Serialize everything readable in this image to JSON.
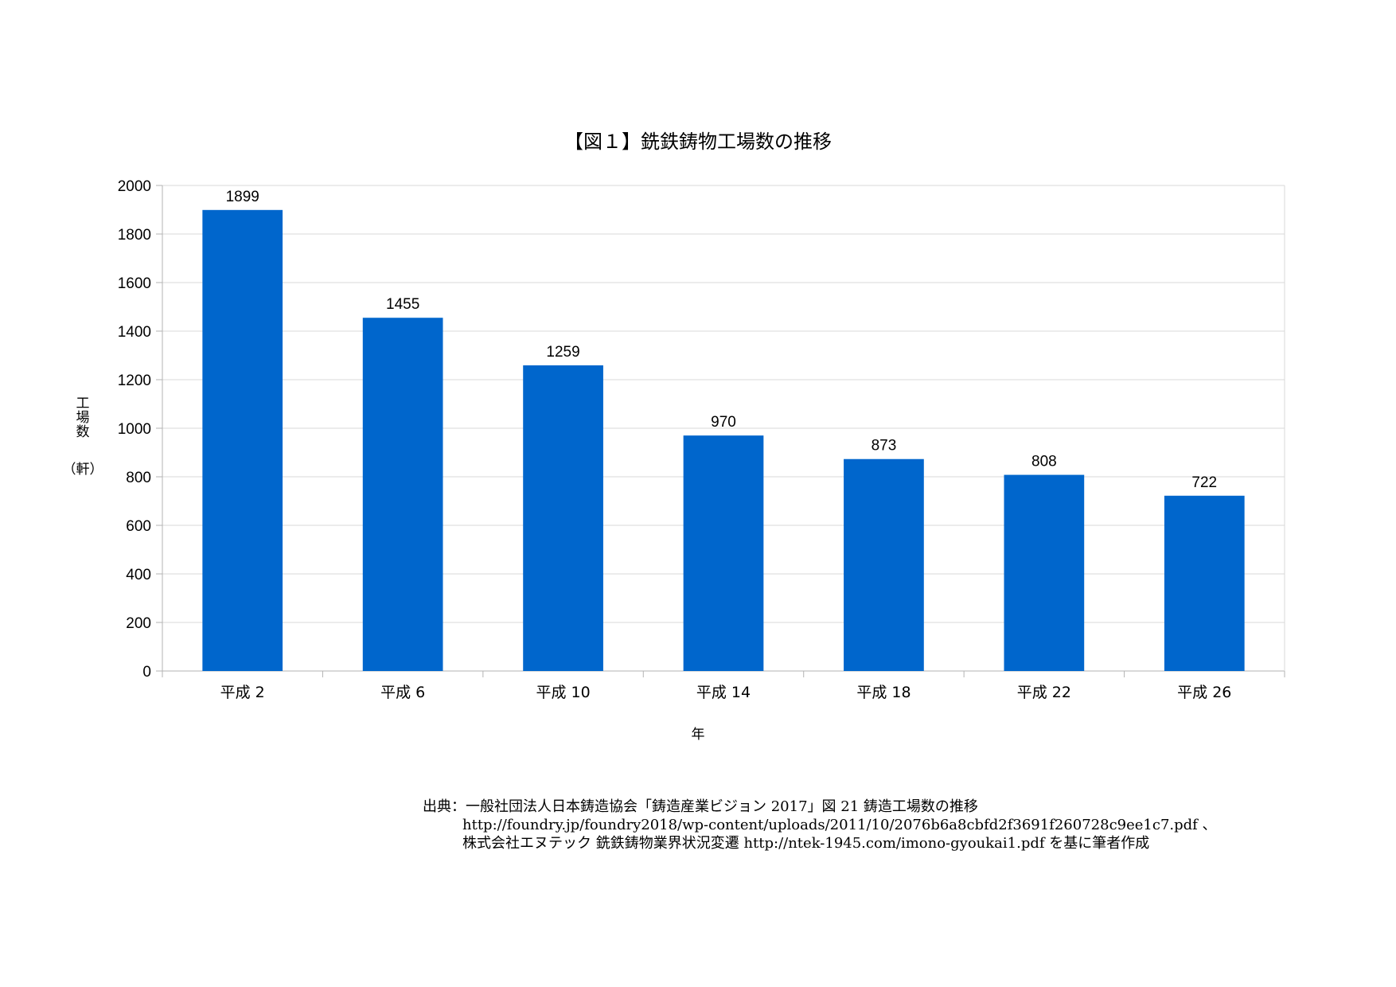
{
  "chart_data": {
    "type": "bar",
    "title": "【図１】銑鉄鋳物工場数の推移",
    "xlabel": "年",
    "ylabel_lines": [
      "工",
      "場",
      "数",
      "（軒）"
    ],
    "categories": [
      "平成 2",
      "平成 6",
      "平成 10",
      "平成 14",
      "平成 18",
      "平成 22",
      "平成 26"
    ],
    "values": [
      1899,
      1455,
      1259,
      970,
      873,
      808,
      722
    ],
    "ylim": [
      0,
      2000
    ],
    "yticks": [
      0,
      200,
      400,
      600,
      800,
      1000,
      1200,
      1400,
      1600,
      1800,
      2000
    ],
    "bar_color": "#0066cc",
    "grid": true,
    "legend": "none"
  },
  "source": {
    "line1": "出典：一般社団法人日本鋳造協会「鋳造産業ビジョン 2017」図 21 鋳造工場数の推移",
    "line2": "http://foundry.jp/foundry2018/wp-content/uploads/2011/10/2076b6a8cbfd2f3691f260728c9ee1c7.pdf 、",
    "line3": "株式会社エヌテック 銑鉄鋳物業界状況変遷 http://ntek-1945.com/imono-gyoukai1.pdf を基に筆者作成"
  }
}
